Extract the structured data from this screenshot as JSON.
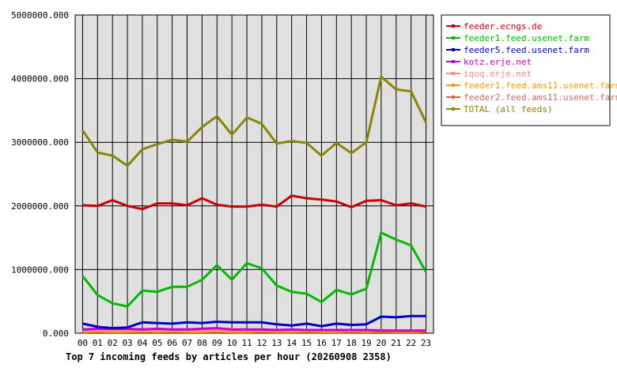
{
  "chart_data": {
    "type": "line",
    "caption": "Top 7 incoming feeds by articles per hour (20260908 2358)",
    "x": [
      "00",
      "01",
      "02",
      "03",
      "04",
      "05",
      "06",
      "07",
      "08",
      "09",
      "10",
      "11",
      "12",
      "13",
      "14",
      "15",
      "16",
      "17",
      "18",
      "19",
      "20",
      "21",
      "22",
      "23"
    ],
    "ylim": [
      0,
      5000000
    ],
    "yticks": [
      0,
      1000000,
      2000000,
      3000000,
      4000000,
      5000000
    ],
    "ytick_labels": [
      "0.000",
      "1000000.000",
      "2000000.000",
      "3000000.000",
      "4000000.000",
      "5000000.000"
    ],
    "grid": true,
    "legend_position": "right",
    "series": [
      {
        "name": "feeder.ecngs.de",
        "color": "#cc0000",
        "values": [
          2010000,
          2000000,
          2090000,
          2000000,
          1950000,
          2040000,
          2040000,
          2010000,
          2120000,
          2020000,
          1990000,
          1990000,
          2020000,
          1990000,
          2160000,
          2120000,
          2100000,
          2070000,
          1980000,
          2080000,
          2090000,
          2010000,
          2040000,
          1990000
        ]
      },
      {
        "name": "feeder1.feed.usenet.farm",
        "color": "#00bb00",
        "values": [
          900000,
          600000,
          470000,
          420000,
          670000,
          650000,
          730000,
          730000,
          840000,
          1070000,
          840000,
          1100000,
          1020000,
          750000,
          650000,
          620000,
          490000,
          680000,
          610000,
          700000,
          1580000,
          1470000,
          1380000,
          960000
        ]
      },
      {
        "name": "feeder5.feed.usenet.farm",
        "color": "#0000cc",
        "values": [
          150000,
          100000,
          80000,
          90000,
          170000,
          160000,
          150000,
          170000,
          160000,
          180000,
          170000,
          170000,
          170000,
          140000,
          120000,
          150000,
          110000,
          150000,
          130000,
          140000,
          260000,
          250000,
          270000,
          270000
        ]
      },
      {
        "name": "kotz.erje.net",
        "color": "#cc00cc",
        "values": [
          60000,
          70000,
          70000,
          70000,
          60000,
          70000,
          60000,
          60000,
          70000,
          80000,
          60000,
          60000,
          60000,
          50000,
          60000,
          50000,
          50000,
          50000,
          50000,
          50000,
          40000,
          40000,
          40000,
          40000
        ]
      },
      {
        "name": "iqoq.erje.net",
        "color": "#ff8888",
        "values": [
          40000,
          45000,
          40000,
          40000,
          45000,
          40000,
          40000,
          45000,
          40000,
          40000,
          40000,
          45000,
          40000,
          40000,
          40000,
          45000,
          45000,
          40000,
          40000,
          45000,
          50000,
          45000,
          45000,
          40000
        ]
      },
      {
        "name": "feeder1.feed.ams11.usenet.farm",
        "color": "#ff9900",
        "values": [
          20000,
          25000,
          20000,
          20000,
          25000,
          20000,
          25000,
          20000,
          20000,
          25000,
          20000,
          20000,
          25000,
          20000,
          20000,
          25000,
          20000,
          20000,
          25000,
          20000,
          25000,
          20000,
          20000,
          25000
        ]
      },
      {
        "name": "feeder2.feed.ams11.usenet.farm",
        "color": "#cc6666",
        "values": [
          30000,
          35000,
          30000,
          35000,
          30000,
          35000,
          30000,
          30000,
          35000,
          30000,
          30000,
          35000,
          30000,
          30000,
          35000,
          30000,
          30000,
          35000,
          30000,
          30000,
          35000,
          30000,
          35000,
          30000
        ]
      },
      {
        "name": "TOTAL (all feeds)",
        "color": "#888800",
        "values": [
          3190000,
          2840000,
          2790000,
          2630000,
          2890000,
          2970000,
          3040000,
          3010000,
          3240000,
          3410000,
          3120000,
          3390000,
          3290000,
          2980000,
          3020000,
          2990000,
          2790000,
          2990000,
          2830000,
          3000000,
          4030000,
          3830000,
          3800000,
          3310000
        ]
      }
    ]
  }
}
